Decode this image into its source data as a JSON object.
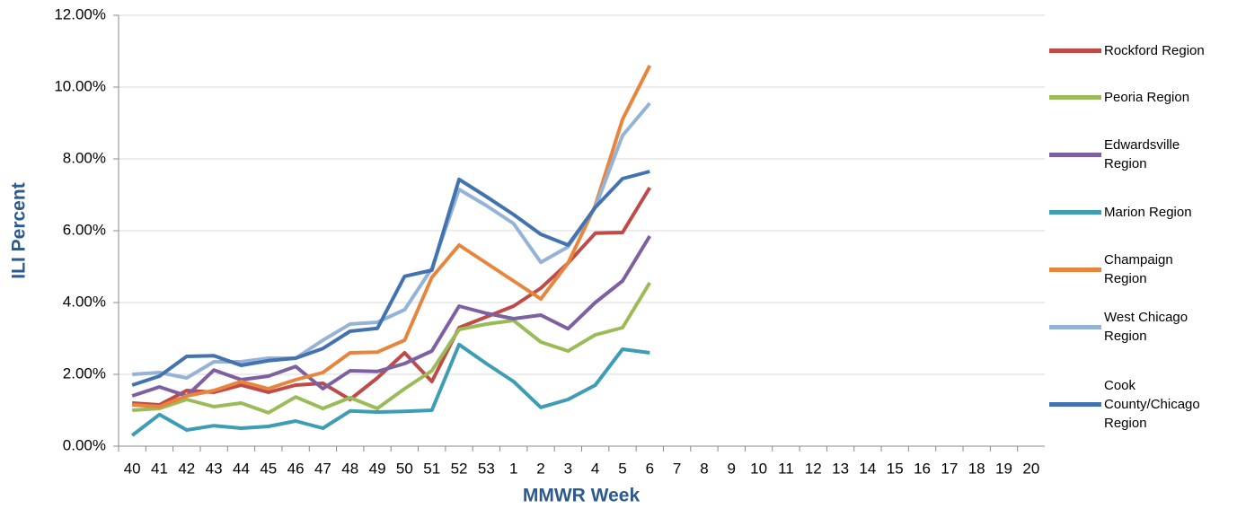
{
  "chart_data": {
    "type": "line",
    "x_label": "MMWR Week",
    "y_label": "ILI Percent",
    "categories": [
      "40",
      "41",
      "42",
      "43",
      "44",
      "45",
      "46",
      "47",
      "48",
      "49",
      "50",
      "51",
      "52",
      "53",
      "1",
      "2",
      "3",
      "4",
      "5",
      "6",
      "7",
      "8",
      "9",
      "10",
      "11",
      "12",
      "13",
      "14",
      "15",
      "16",
      "17",
      "18",
      "19",
      "20"
    ],
    "ylim": [
      0,
      12
    ],
    "yticks": [
      {
        "value": 0,
        "label": "0.00%"
      },
      {
        "value": 2,
        "label": "2.00%"
      },
      {
        "value": 4,
        "label": "4.00%"
      },
      {
        "value": 6,
        "label": "6.00%"
      },
      {
        "value": 8,
        "label": "8.00%"
      },
      {
        "value": 10,
        "label": "10.00%"
      },
      {
        "value": 12,
        "label": "12.00%"
      }
    ],
    "grid": true,
    "legend": "right",
    "series": [
      {
        "name": "Rockford Region",
        "color": "#be4b48",
        "values": [
          1.2,
          1.15,
          1.55,
          1.5,
          1.7,
          1.5,
          1.7,
          1.75,
          1.3,
          1.9,
          2.6,
          1.8,
          3.3,
          3.6,
          3.9,
          4.4,
          5.1,
          5.93,
          5.95,
          7.2,
          null,
          null,
          null,
          null,
          null,
          null,
          null,
          null,
          null,
          null,
          null,
          null,
          null,
          null
        ]
      },
      {
        "name": "Peoria Region",
        "color": "#9bbb59",
        "values": [
          1.0,
          1.05,
          1.3,
          1.1,
          1.2,
          0.93,
          1.37,
          1.05,
          1.35,
          1.05,
          1.6,
          2.1,
          3.25,
          3.4,
          3.5,
          2.9,
          2.65,
          3.1,
          3.3,
          4.55,
          null,
          null,
          null,
          null,
          null,
          null,
          null,
          null,
          null,
          null,
          null,
          null,
          null,
          null
        ]
      },
      {
        "name": "Edwardsville Region",
        "color": "#7d60a0",
        "values": [
          1.4,
          1.65,
          1.4,
          2.12,
          1.85,
          1.95,
          2.22,
          1.6,
          2.1,
          2.08,
          2.3,
          2.65,
          3.9,
          3.7,
          3.55,
          3.65,
          3.27,
          4.0,
          4.6,
          5.85,
          null,
          null,
          null,
          null,
          null,
          null,
          null,
          null,
          null,
          null,
          null,
          null,
          null,
          null
        ]
      },
      {
        "name": "Marion Region",
        "color": "#3e9cb4",
        "values": [
          0.3,
          0.88,
          0.45,
          0.57,
          0.5,
          0.55,
          0.7,
          0.5,
          0.98,
          0.95,
          0.97,
          1.0,
          2.83,
          2.3,
          1.8,
          1.08,
          1.3,
          1.7,
          2.7,
          2.6,
          null,
          null,
          null,
          null,
          null,
          null,
          null,
          null,
          null,
          null,
          null,
          null,
          null,
          null
        ]
      },
      {
        "name": "Champaign Region",
        "color": "#e8853d",
        "values": [
          1.15,
          1.1,
          1.4,
          1.55,
          1.8,
          1.6,
          1.85,
          2.05,
          2.6,
          2.62,
          2.95,
          4.7,
          5.6,
          5.1,
          4.6,
          4.1,
          5.1,
          6.7,
          9.1,
          10.6,
          null,
          null,
          null,
          null,
          null,
          null,
          null,
          null,
          null,
          null,
          null,
          null,
          null,
          null
        ]
      },
      {
        "name": "West Chicago Region",
        "color": "#95b3d7",
        "values": [
          2.0,
          2.05,
          1.9,
          2.35,
          2.35,
          2.45,
          2.45,
          2.95,
          3.4,
          3.45,
          3.8,
          4.95,
          7.15,
          6.7,
          6.2,
          5.12,
          5.55,
          6.65,
          8.65,
          9.55,
          null,
          null,
          null,
          null,
          null,
          null,
          null,
          null,
          null,
          null,
          null,
          null,
          null,
          null
        ]
      },
      {
        "name": "Cook County/Chicago Region",
        "color": "#4272b0",
        "values": [
          1.7,
          1.95,
          2.5,
          2.52,
          2.25,
          2.38,
          2.45,
          2.72,
          3.2,
          3.28,
          4.73,
          4.9,
          7.43,
          6.95,
          6.45,
          5.9,
          5.6,
          6.65,
          7.45,
          7.65,
          null,
          null,
          null,
          null,
          null,
          null,
          null,
          null,
          null,
          null,
          null,
          null,
          null,
          null
        ]
      }
    ]
  }
}
